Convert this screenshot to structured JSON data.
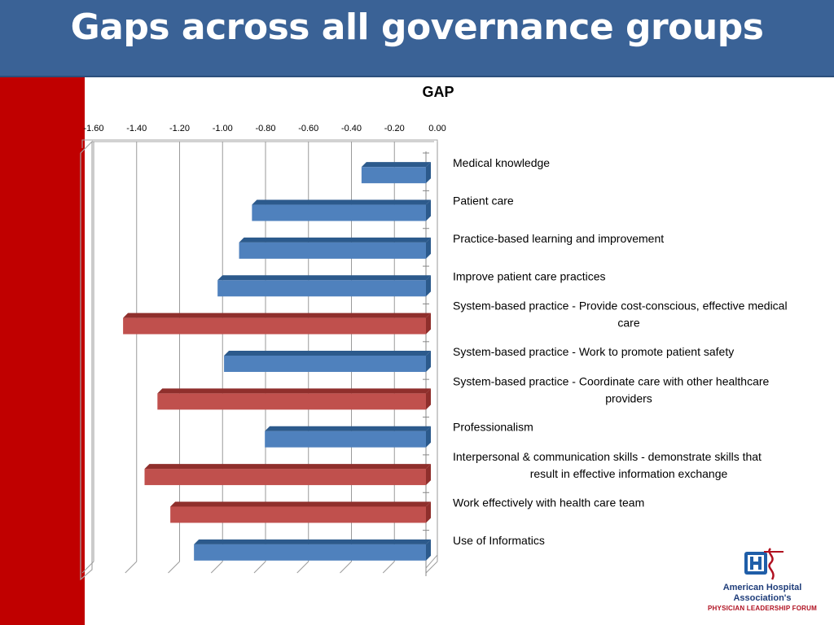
{
  "slide": {
    "title": "Gaps across all governance groups"
  },
  "colors": {
    "title_bar": "#3a6296",
    "side_bar": "#c00000",
    "series_blue": "#4f81bd",
    "series_red": "#c0504d"
  },
  "logo": {
    "line1": "American Hospital",
    "line2": "Association's",
    "line3": "PHYSICIAN LEADERSHIP FORUM",
    "icon": "hospital-h-caduceus-icon"
  },
  "chart_data": {
    "type": "bar",
    "orientation": "horizontal",
    "title": "GAP",
    "xlim": [
      -1.6,
      0.0
    ],
    "xticks": [
      "-1.60",
      "-1.40",
      "-1.20",
      "-1.00",
      "-0.80",
      "-0.60",
      "-0.40",
      "-0.20",
      "0.00"
    ],
    "axis_position": "top",
    "grid": true,
    "categories": [
      [
        "Medical knowledge"
      ],
      [
        "Patient care"
      ],
      [
        "Practice-based learning and improvement"
      ],
      [
        "Improve patient care practices"
      ],
      [
        "System-based practice - Provide cost-conscious, effective medical",
        "care"
      ],
      [
        "System-based practice - Work to promote patient safety"
      ],
      [
        "System-based practice - Coordinate care with other healthcare",
        "providers"
      ],
      [
        "Professionalism"
      ],
      [
        "Interpersonal & communication skills - demonstrate skills that",
        "result in effective information exchange"
      ],
      [
        "Work effectively with health care team"
      ],
      [
        "Use of Informatics"
      ]
    ],
    "values": [
      -0.3,
      -0.81,
      -0.87,
      -0.97,
      -1.41,
      -0.94,
      -1.25,
      -0.75,
      -1.31,
      -1.19,
      -1.08
    ],
    "bar_colors": [
      "blue",
      "blue",
      "blue",
      "blue",
      "red",
      "blue",
      "red",
      "blue",
      "red",
      "red",
      "blue"
    ]
  }
}
